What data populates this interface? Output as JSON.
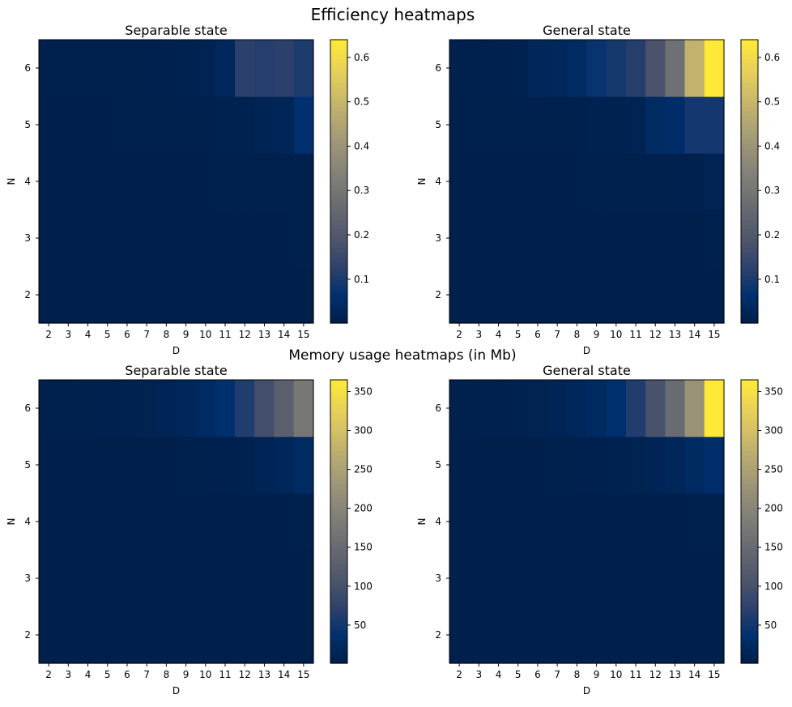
{
  "figure": {
    "top_title": "Efficiency heatmaps",
    "mid_title": "Memory usage heatmaps (in Mb)"
  },
  "colormap": {
    "name": "cividis",
    "stops": [
      "#00204c",
      "#00306f",
      "#2a406c",
      "#48526b",
      "#5e626e",
      "#727374",
      "#878479",
      "#9e9677",
      "#b6a971",
      "#d0be67",
      "#ead357",
      "#fee838"
    ]
  },
  "chart_data": [
    {
      "type": "heatmap",
      "title": "Separable state",
      "xlabel": "D",
      "ylabel": "N",
      "x": [
        2,
        3,
        4,
        5,
        6,
        7,
        8,
        9,
        10,
        11,
        12,
        13,
        14,
        15
      ],
      "y": [
        2,
        3,
        4,
        5,
        6
      ],
      "values": [
        [
          0.001,
          0.001,
          0.001,
          0.001,
          0.001,
          0.001,
          0.001,
          0.001,
          0.001,
          0.001,
          0.001,
          0.001,
          0.001,
          0.001
        ],
        [
          0.001,
          0.001,
          0.001,
          0.001,
          0.001,
          0.001,
          0.001,
          0.001,
          0.001,
          0.001,
          0.001,
          0.001,
          0.001,
          0.002
        ],
        [
          0.001,
          0.001,
          0.001,
          0.001,
          0.001,
          0.001,
          0.001,
          0.001,
          0.001,
          0.002,
          0.002,
          0.003,
          0.004,
          0.005
        ],
        [
          0.001,
          0.001,
          0.001,
          0.001,
          0.002,
          0.002,
          0.003,
          0.004,
          0.005,
          0.007,
          0.01,
          0.015,
          0.02,
          0.06
        ],
        [
          0.002,
          0.002,
          0.002,
          0.003,
          0.004,
          0.005,
          0.006,
          0.008,
          0.012,
          0.03,
          0.12,
          0.11,
          0.12,
          0.1
        ]
      ],
      "clim": [
        0.001,
        0.64
      ],
      "colorbar_ticks": [
        0.1,
        0.2,
        0.3,
        0.4,
        0.5,
        0.6
      ]
    },
    {
      "type": "heatmap",
      "title": "General state",
      "xlabel": "D",
      "ylabel": "N",
      "x": [
        2,
        3,
        4,
        5,
        6,
        7,
        8,
        9,
        10,
        11,
        12,
        13,
        14,
        15
      ],
      "y": [
        2,
        3,
        4,
        5,
        6
      ],
      "values": [
        [
          0.001,
          0.001,
          0.001,
          0.001,
          0.001,
          0.001,
          0.001,
          0.001,
          0.001,
          0.001,
          0.001,
          0.001,
          0.001,
          0.001
        ],
        [
          0.001,
          0.001,
          0.001,
          0.001,
          0.001,
          0.001,
          0.001,
          0.001,
          0.001,
          0.001,
          0.001,
          0.001,
          0.001,
          0.002
        ],
        [
          0.001,
          0.001,
          0.001,
          0.001,
          0.001,
          0.001,
          0.001,
          0.002,
          0.002,
          0.003,
          0.004,
          0.005,
          0.006,
          0.012
        ],
        [
          0.001,
          0.002,
          0.002,
          0.002,
          0.003,
          0.004,
          0.005,
          0.008,
          0.01,
          0.012,
          0.04,
          0.05,
          0.085,
          0.085
        ],
        [
          0.003,
          0.004,
          0.006,
          0.01,
          0.025,
          0.03,
          0.04,
          0.07,
          0.09,
          0.11,
          0.18,
          0.28,
          0.49,
          0.64
        ]
      ],
      "clim": [
        0.001,
        0.64
      ],
      "colorbar_ticks": [
        0.1,
        0.2,
        0.3,
        0.4,
        0.5,
        0.6
      ]
    },
    {
      "type": "heatmap",
      "title": "Separable state",
      "xlabel": "D",
      "ylabel": "N",
      "x": [
        2,
        3,
        4,
        5,
        6,
        7,
        8,
        9,
        10,
        11,
        12,
        13,
        14,
        15
      ],
      "y": [
        2,
        3,
        4,
        5,
        6
      ],
      "values": [
        [
          1,
          1,
          1,
          1,
          1,
          1,
          1,
          1,
          1,
          1,
          1,
          1,
          1,
          1
        ],
        [
          1,
          1,
          1,
          1,
          1,
          1,
          1,
          1,
          1,
          1,
          1,
          1,
          1,
          1
        ],
        [
          1,
          1,
          1,
          1,
          1,
          1,
          1,
          1,
          1,
          1,
          1,
          1,
          1,
          2
        ],
        [
          1,
          1,
          1,
          1,
          1,
          1,
          1,
          2,
          3,
          4,
          6,
          10,
          15,
          22
        ],
        [
          2,
          2,
          3,
          4,
          5,
          7,
          10,
          15,
          22,
          32,
          60,
          95,
          130,
          175
        ]
      ],
      "clim": [
        1,
        365
      ],
      "colorbar_ticks": [
        50,
        100,
        150,
        200,
        250,
        300,
        350
      ]
    },
    {
      "type": "heatmap",
      "title": "General state",
      "xlabel": "D",
      "ylabel": "N",
      "x": [
        2,
        3,
        4,
        5,
        6,
        7,
        8,
        9,
        10,
        11,
        12,
        13,
        14,
        15
      ],
      "y": [
        2,
        3,
        4,
        5,
        6
      ],
      "values": [
        [
          1,
          1,
          1,
          1,
          1,
          1,
          1,
          1,
          1,
          1,
          1,
          1,
          1,
          1
        ],
        [
          1,
          1,
          1,
          1,
          1,
          1,
          1,
          1,
          1,
          1,
          1,
          1,
          1,
          1
        ],
        [
          1,
          1,
          1,
          1,
          1,
          1,
          1,
          1,
          1,
          1,
          1,
          1,
          2,
          3
        ],
        [
          1,
          1,
          1,
          1,
          1,
          2,
          3,
          4,
          5,
          7,
          10,
          14,
          22,
          30
        ],
        [
          2,
          3,
          4,
          5,
          7,
          10,
          15,
          22,
          32,
          60,
          100,
          150,
          225,
          365
        ]
      ],
      "clim": [
        1,
        365
      ],
      "colorbar_ticks": [
        50,
        100,
        150,
        200,
        250,
        300,
        350
      ]
    }
  ]
}
